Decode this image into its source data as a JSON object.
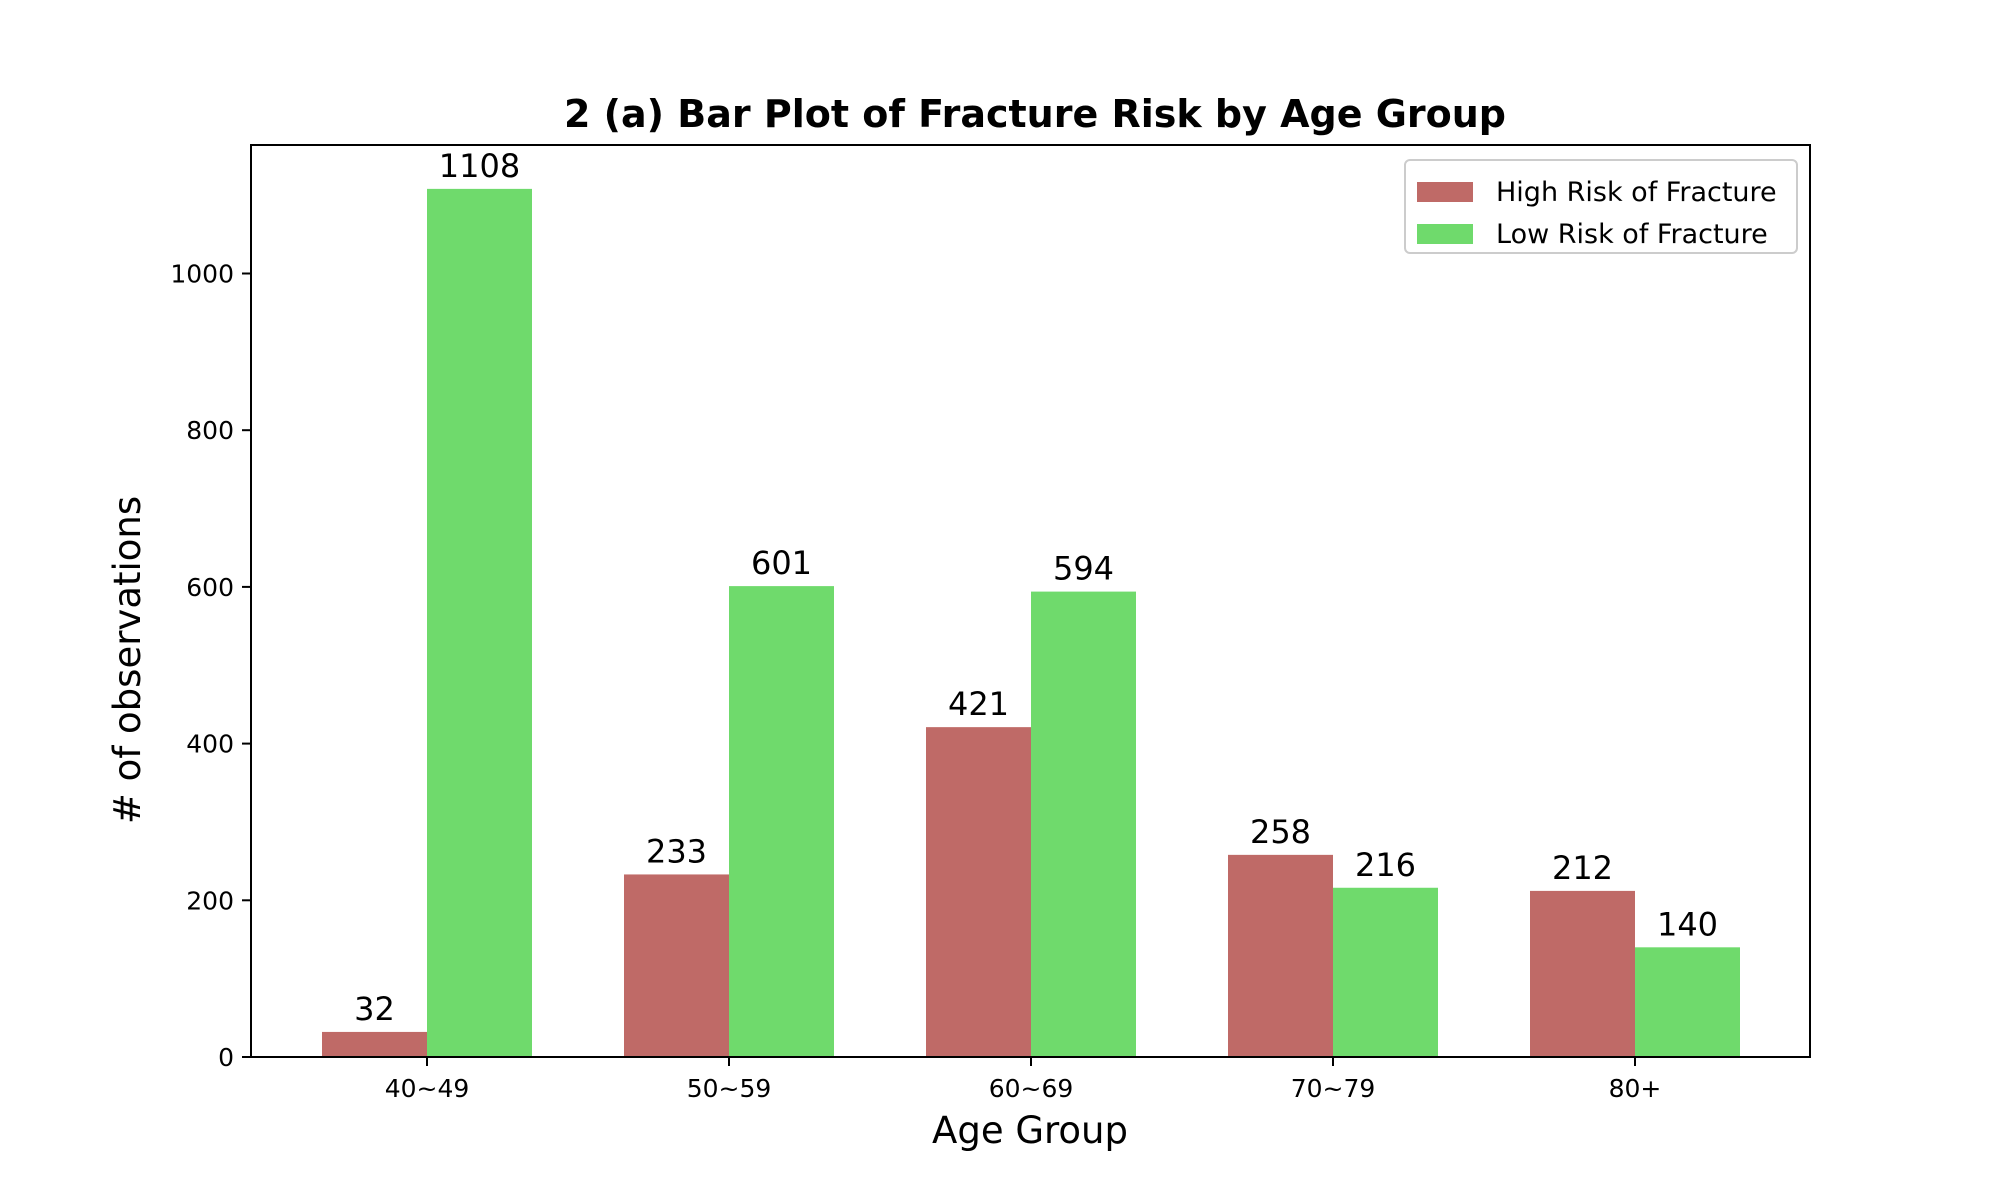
{
  "chart_data": {
    "type": "bar",
    "title": "2 (a) Bar Plot of Fracture Risk by Age Group",
    "xlabel": "Age Group",
    "ylabel": "# of observations",
    "categories": [
      "40~49",
      "50~59",
      "60~69",
      "70~79",
      "80+"
    ],
    "series": [
      {
        "name": "High Risk of Fracture",
        "values": [
          32,
          233,
          421,
          258,
          212
        ],
        "color": "#bf6a67"
      },
      {
        "name": "Low Risk of Fracture",
        "values": [
          1108,
          601,
          594,
          216,
          140
        ],
        "color": "#6fda6c"
      }
    ],
    "ylim": [
      0,
      1164
    ],
    "yticks": [
      0,
      200,
      400,
      600,
      800,
      1000
    ],
    "grid": false,
    "legend": "upper right"
  }
}
